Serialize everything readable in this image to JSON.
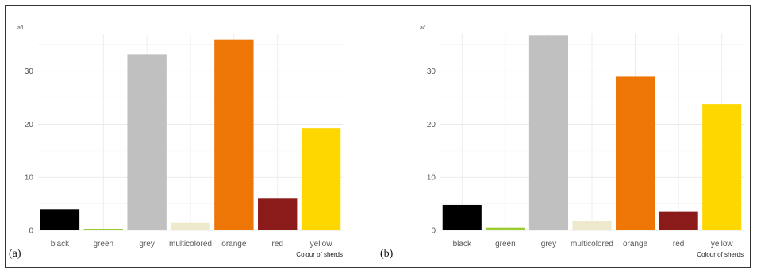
{
  "colors": {
    "black": "#000000",
    "green": "#9acd32",
    "grey": "#c0c0c0",
    "multicolored": "#eee8cd",
    "orange": "#ee7606",
    "red": "#8b1a1a",
    "yellow": "#ffd700"
  },
  "chart_data": [
    {
      "type": "bar",
      "panel_label": "(a)",
      "categories": [
        "black",
        "green",
        "grey",
        "multicolored",
        "orange",
        "red",
        "yellow"
      ],
      "values": [
        4.0,
        0.3,
        33.2,
        1.4,
        36.0,
        6.1,
        19.3
      ],
      "title": "",
      "xlabel": "Colour of sherds",
      "ylabel": "a/l",
      "ylim": [
        0,
        37
      ],
      "yticks": [
        0,
        10,
        20,
        30
      ],
      "grid": true
    },
    {
      "type": "bar",
      "panel_label": "(b)",
      "categories": [
        "black",
        "green",
        "grey",
        "multicolored",
        "orange",
        "red",
        "yellow"
      ],
      "values": [
        4.8,
        0.5,
        36.8,
        1.8,
        29.0,
        3.5,
        23.8
      ],
      "title": "",
      "xlabel": "Colour of sherds",
      "ylabel": "a/l",
      "ylim": [
        0,
        37
      ],
      "yticks": [
        0,
        10,
        20,
        30
      ],
      "grid": true
    }
  ]
}
